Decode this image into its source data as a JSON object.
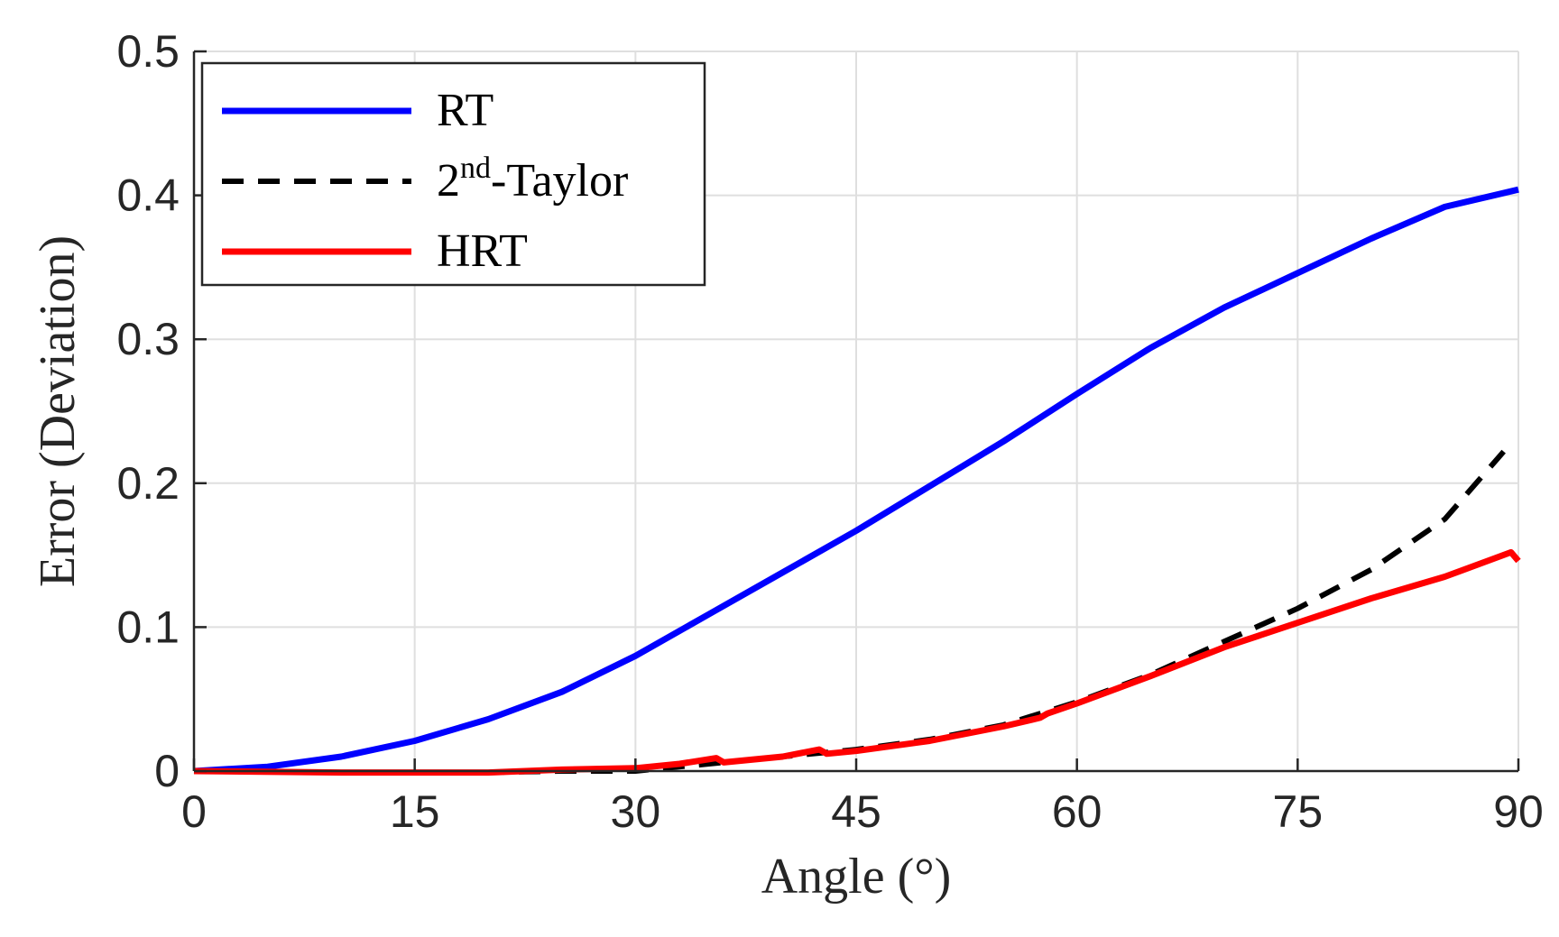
{
  "chart_data": {
    "type": "line",
    "title": "",
    "xlabel": "Angle (°)",
    "ylabel": "Error (Deviation)",
    "xlim": [
      0,
      90
    ],
    "ylim": [
      0,
      0.5
    ],
    "xticks": [
      0,
      15,
      30,
      45,
      60,
      75,
      90
    ],
    "xtick_labels": [
      "0",
      "15",
      "30",
      "45",
      "60",
      "75",
      "90"
    ],
    "yticks": [
      0,
      0.1,
      0.2,
      0.3,
      0.4,
      0.5
    ],
    "ytick_labels": [
      "0",
      "0.1",
      "0.2",
      "0.3",
      "0.4",
      "0.5"
    ],
    "grid": true,
    "legend_position": "top-left",
    "series": [
      {
        "name": "RT",
        "legend_label": "RT",
        "color": "#0000ff",
        "style": "solid",
        "x": [
          0,
          5,
          10,
          15,
          20,
          25,
          30,
          35,
          40,
          45,
          50,
          55,
          60,
          65,
          70,
          75,
          80,
          85,
          90
        ],
        "y": [
          0,
          0.003,
          0.01,
          0.021,
          0.036,
          0.055,
          0.08,
          0.109,
          0.138,
          0.167,
          0.198,
          0.229,
          0.262,
          0.294,
          0.322,
          0.346,
          0.37,
          0.392,
          0.404
        ]
      },
      {
        "name": "2nd-Taylor",
        "legend_label": "2",
        "legend_sup": "nd",
        "legend_suffix": "-Taylor",
        "color": "#000000",
        "style": "dashed",
        "x": [
          0,
          10,
          20,
          25,
          30,
          35,
          40,
          45,
          50,
          55,
          60,
          65,
          70,
          75,
          80,
          85,
          89
        ],
        "y": [
          0,
          -0.001,
          -0.001,
          0,
          0,
          0.005,
          0.01,
          0.015,
          0.022,
          0.032,
          0.048,
          0.067,
          0.09,
          0.113,
          0.14,
          0.175,
          0.222
        ]
      },
      {
        "name": "HRT",
        "legend_label": "HRT",
        "color": "#ff0000",
        "style": "solid",
        "x": [
          0,
          10,
          20,
          25,
          30,
          33,
          35.5,
          36,
          40,
          42.5,
          43,
          45,
          50,
          55,
          57.5,
          58,
          60,
          65,
          70,
          75,
          80,
          85,
          89.5,
          90
        ],
        "y": [
          0,
          -0.001,
          -0.001,
          0.001,
          0.002,
          0.005,
          0.009,
          0.006,
          0.01,
          0.015,
          0.012,
          0.014,
          0.021,
          0.031,
          0.037,
          0.04,
          0.047,
          0.066,
          0.086,
          0.103,
          0.12,
          0.135,
          0.152,
          0.146
        ]
      }
    ]
  }
}
